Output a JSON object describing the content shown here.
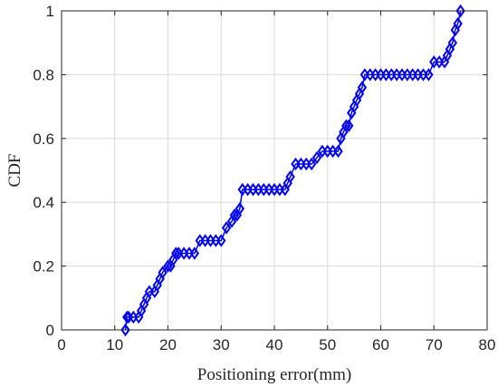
{
  "chart_data": {
    "type": "line",
    "xlabel": "Positioning error(mm)",
    "ylabel": "CDF",
    "xlim": [
      0,
      80
    ],
    "ylim": [
      0,
      1
    ],
    "xticks": [
      0,
      10,
      20,
      30,
      40,
      50,
      60,
      70,
      80
    ],
    "yticks": [
      0,
      0.2,
      0.4,
      0.6,
      0.8,
      1
    ],
    "xtick_labels": [
      "0",
      "10",
      "20",
      "30",
      "40",
      "50",
      "60",
      "70",
      "80"
    ],
    "ytick_labels": [
      "0",
      "0.2",
      "0.4",
      "0.6",
      "0.8",
      "1"
    ],
    "grid": true,
    "series": [
      {
        "marker": "diamond",
        "color": "#0000ff",
        "x": [
          12.0,
          12.3,
          12.6,
          13.5,
          14.5,
          15.0,
          15.5,
          16.0,
          16.5,
          17.5,
          18.0,
          18.5,
          19.0,
          20.0,
          20.5,
          21.0,
          21.5,
          22.0,
          23.0,
          24.0,
          25.0,
          26.0,
          27.0,
          28.0,
          29.0,
          30.0,
          31.0,
          32.0,
          32.5,
          33.0,
          33.5,
          34.0,
          35.0,
          36.0,
          37.0,
          38.0,
          39.0,
          40.0,
          41.0,
          42.0,
          42.5,
          43.0,
          44.0,
          45.0,
          46.0,
          47.0,
          48.0,
          49.0,
          50.0,
          51.0,
          52.0,
          52.5,
          53.0,
          53.5,
          54.0,
          54.5,
          55.0,
          55.5,
          56.0,
          56.5,
          57.0,
          58.0,
          59.0,
          60.0,
          61.0,
          62.0,
          63.0,
          64.0,
          65.0,
          66.0,
          67.0,
          68.0,
          69.0,
          70.0,
          71.0,
          72.0,
          72.5,
          73.0,
          73.5,
          74.0,
          74.5,
          75.0
        ],
        "y": [
          0.0,
          0.04,
          0.04,
          0.04,
          0.04,
          0.06,
          0.08,
          0.1,
          0.12,
          0.12,
          0.14,
          0.16,
          0.18,
          0.2,
          0.2,
          0.22,
          0.24,
          0.24,
          0.24,
          0.24,
          0.24,
          0.28,
          0.28,
          0.28,
          0.28,
          0.28,
          0.32,
          0.34,
          0.36,
          0.36,
          0.38,
          0.44,
          0.44,
          0.44,
          0.44,
          0.44,
          0.44,
          0.44,
          0.44,
          0.44,
          0.46,
          0.48,
          0.52,
          0.52,
          0.52,
          0.52,
          0.54,
          0.56,
          0.56,
          0.56,
          0.56,
          0.6,
          0.62,
          0.64,
          0.64,
          0.68,
          0.7,
          0.72,
          0.74,
          0.76,
          0.8,
          0.8,
          0.8,
          0.8,
          0.8,
          0.8,
          0.8,
          0.8,
          0.8,
          0.8,
          0.8,
          0.8,
          0.8,
          0.84,
          0.84,
          0.84,
          0.86,
          0.88,
          0.9,
          0.94,
          0.96,
          1.0
        ]
      }
    ]
  }
}
